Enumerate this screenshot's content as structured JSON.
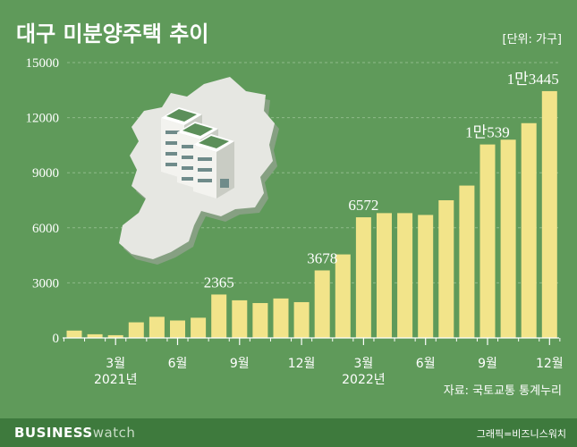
{
  "title": "대구 미분양주택 추이",
  "unit": "[단위: 가구]",
  "source": "자료: 국토교통 통계누리",
  "credit": "그래픽=비즈니스워치",
  "brand": {
    "bold": "BUSINESS",
    "light": "watch"
  },
  "colors": {
    "background": "#5f9a5a",
    "bar": "#f2e48a",
    "footer": "#3e7a3d",
    "text": "#ffffff",
    "label": "#ffffff"
  },
  "chart_data": {
    "type": "bar",
    "title": "대구 미분양주택 추이",
    "unit": "[단위: 가구]",
    "ylim": [
      0,
      15000
    ],
    "yticks": [
      "0",
      "3000",
      "6000",
      "9000",
      "12000",
      "15000"
    ],
    "grid": true,
    "categories": [
      "2021-01",
      "2021-02",
      "2021-03",
      "2021-04",
      "2021-05",
      "2021-06",
      "2021-07",
      "2021-08",
      "2021-09",
      "2021-10",
      "2021-11",
      "2021-12",
      "2022-01",
      "2022-02",
      "2022-03",
      "2022-04",
      "2022-05",
      "2022-06",
      "2022-07",
      "2022-08",
      "2022-09",
      "2022-10",
      "2022-11",
      "2022-12"
    ],
    "values": [
      400,
      200,
      150,
      850,
      1150,
      950,
      1100,
      2365,
      2050,
      1900,
      2150,
      1950,
      3678,
      4550,
      6572,
      6800,
      6800,
      6700,
      7500,
      8300,
      10539,
      10800,
      11700,
      13445
    ],
    "xtick_labels": [
      {
        "index": 2,
        "label": "3월"
      },
      {
        "index": 5,
        "label": "6월"
      },
      {
        "index": 8,
        "label": "9월"
      },
      {
        "index": 11,
        "label": "12월"
      },
      {
        "index": 14,
        "label": "3월"
      },
      {
        "index": 17,
        "label": "6월"
      },
      {
        "index": 20,
        "label": "9월"
      },
      {
        "index": 23,
        "label": "12월"
      }
    ],
    "year_labels": [
      {
        "index": 2,
        "label": "2021년"
      },
      {
        "index": 14,
        "label": "2022년"
      }
    ],
    "data_labels": [
      {
        "index": 7,
        "label": "2365"
      },
      {
        "index": 12,
        "label": "3678"
      },
      {
        "index": 14,
        "label": "6572"
      },
      {
        "index": 20,
        "label": "1만539"
      },
      {
        "index": 23,
        "label": "1만3445"
      }
    ]
  }
}
